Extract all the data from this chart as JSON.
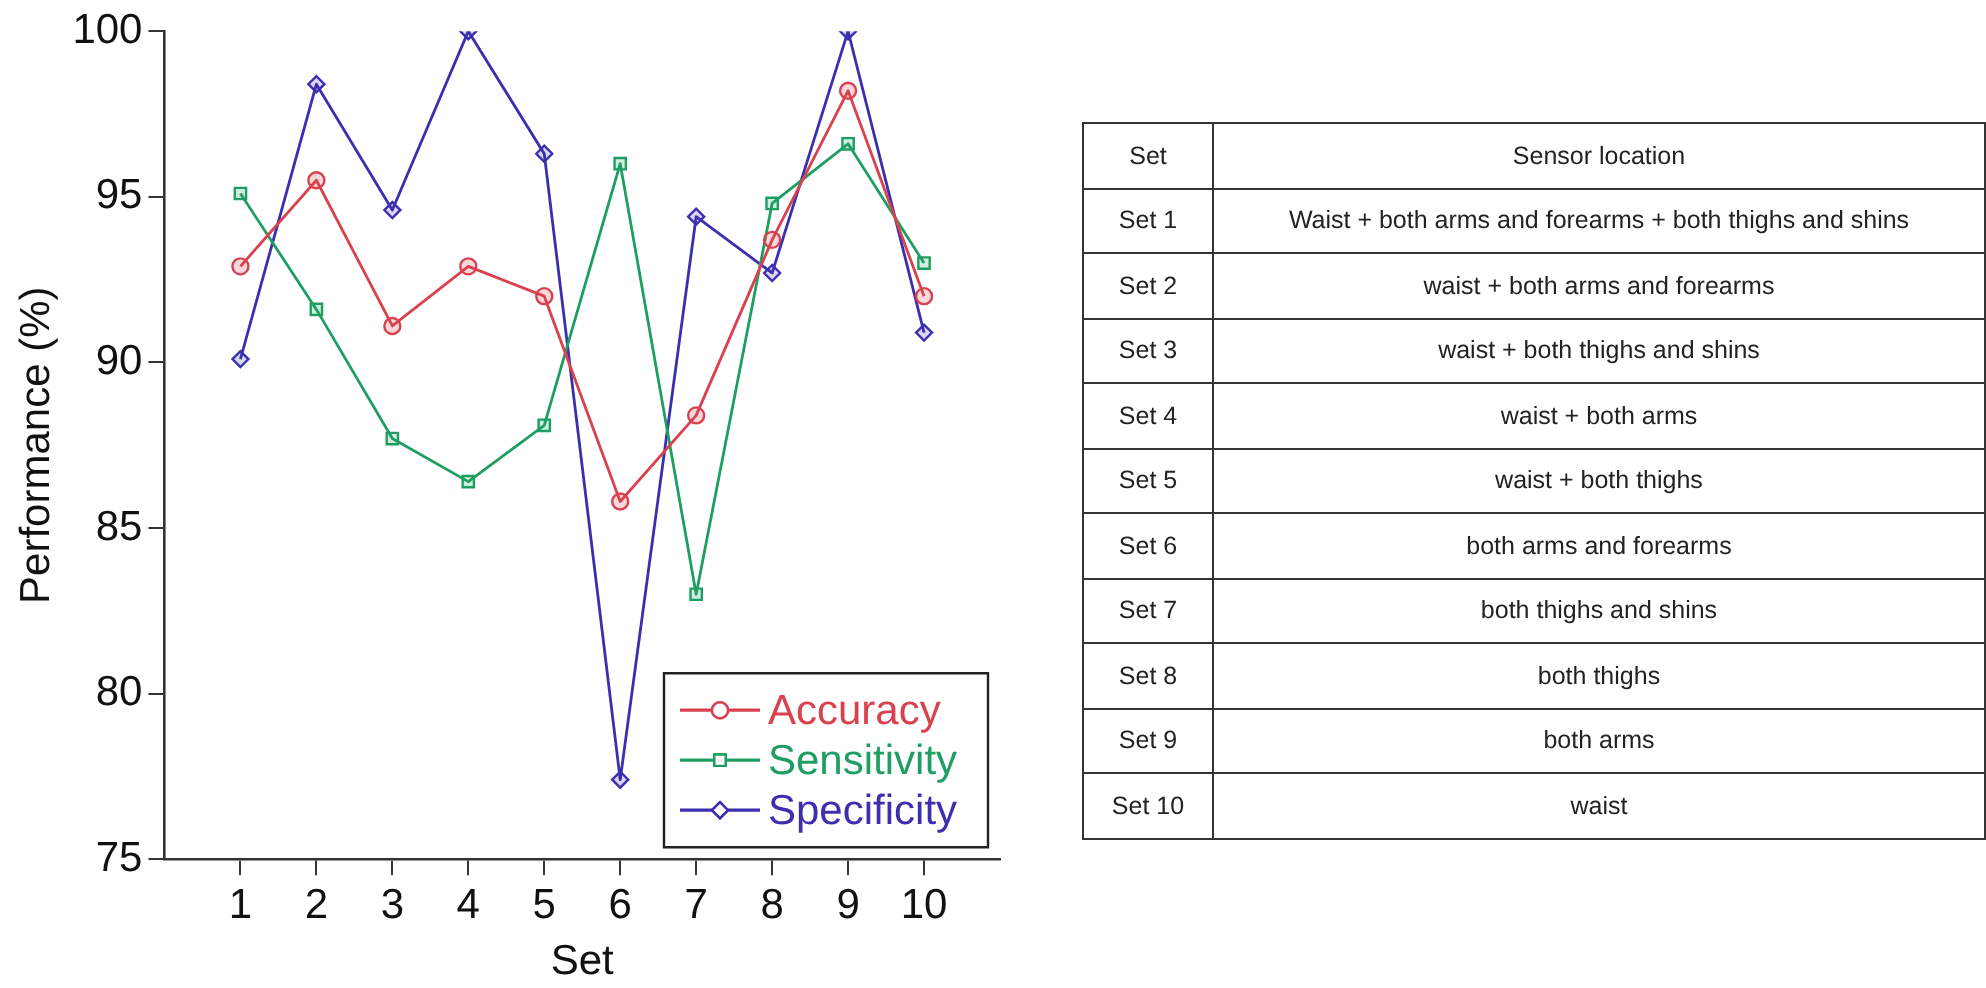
{
  "chart_data": [
    {
      "type": "line",
      "xlabel": "Set",
      "ylabel": "Performance (%)",
      "x": [
        1,
        2,
        3,
        4,
        5,
        6,
        7,
        8,
        9,
        10
      ],
      "xlim": [
        0,
        11
      ],
      "xticks": [
        1,
        2,
        3,
        4,
        5,
        6,
        7,
        8,
        9,
        10
      ],
      "ylim": [
        75,
        100
      ],
      "yticks": [
        75,
        80,
        85,
        90,
        95,
        100
      ],
      "grid": false,
      "legend": "bottom right",
      "line_style": "solid",
      "series": [
        {
          "name": "Accuracy",
          "color": "#d9414e",
          "marker": "circle",
          "values": [
            92.9,
            95.5,
            91.1,
            92.9,
            92.0,
            85.8,
            88.4,
            93.7,
            98.2,
            92.0
          ]
        },
        {
          "name": "Sensitivity",
          "color": "#1f9e63",
          "marker": "square",
          "values": [
            95.1,
            91.6,
            87.7,
            86.4,
            88.1,
            96.0,
            83.0,
            94.8,
            96.6,
            93.0
          ]
        },
        {
          "name": "Specificity",
          "color": "#3b2fb0",
          "marker": "diamond",
          "values": [
            90.1,
            98.4,
            94.6,
            100,
            96.3,
            77.4,
            94.4,
            92.7,
            100,
            90.9
          ]
        }
      ]
    },
    {
      "type": "other",
      "annotations": [
        "Set",
        "Sensor location",
        "Set 1",
        "Waist + both arms and forearms + both thighs and shins",
        "Set 2",
        "waist + both arms and forearms",
        "Set 3",
        "waist + both thighs and shins",
        "Set 4",
        "waist + both arms",
        "Set 5",
        "waist + both thighs",
        "Set 6",
        "both arms and forearms",
        "Set 7",
        "both thighs and shins",
        "Set 8",
        "both thighs",
        "Set 9",
        "both arms",
        "Set 10",
        "waist"
      ]
    }
  ]
}
